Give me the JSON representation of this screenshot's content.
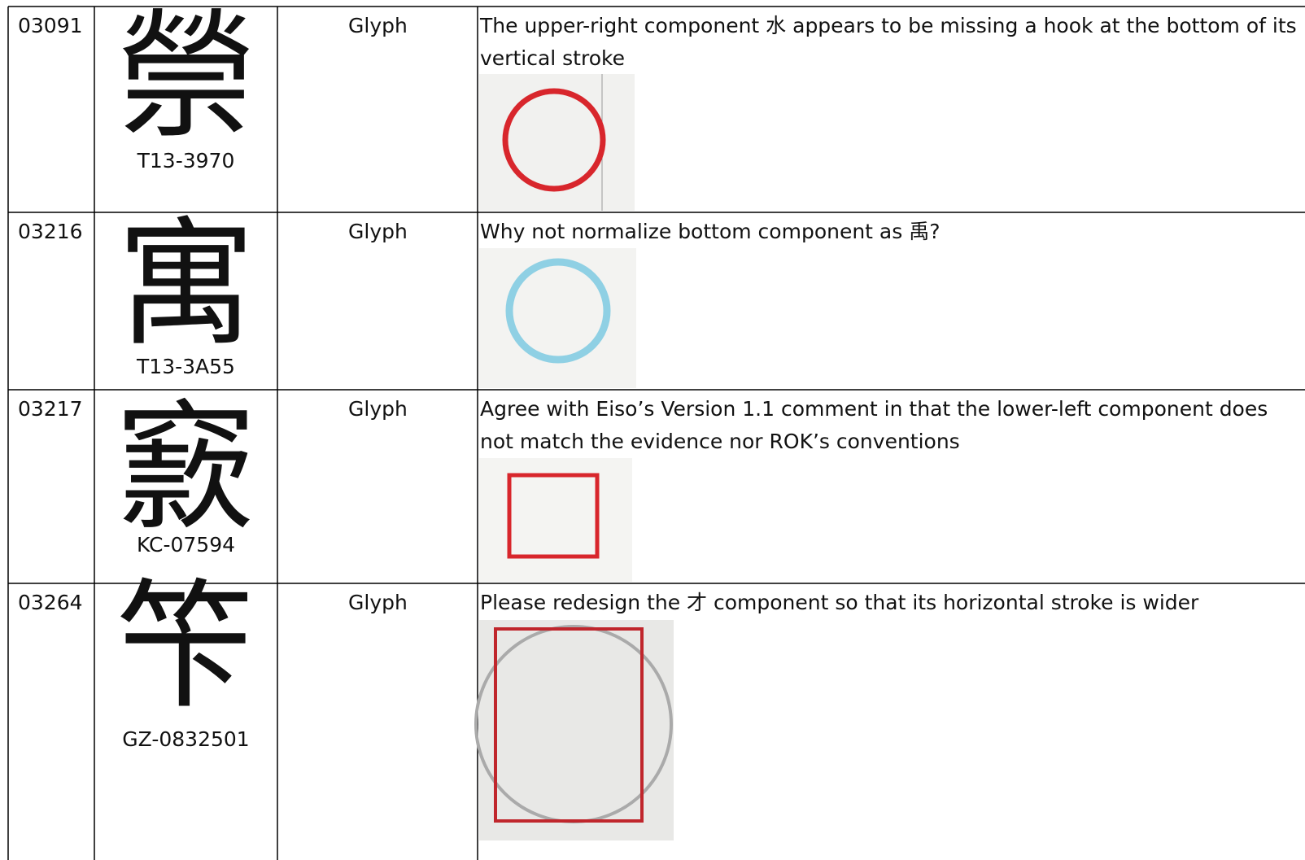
{
  "table": {
    "rows": [
      {
        "seq": "03091",
        "glyph": "禜",
        "source": "T13-3970",
        "kind": "Glyph",
        "comment": "The upper-right component 水 appears to be missing a hook at the bottom of its vertical stroke"
      },
      {
        "seq": "03216",
        "glyph": "寓",
        "source": "T13-3A55",
        "kind": "Glyph",
        "comment": "Why not normalize bottom component as 禹?"
      },
      {
        "seq": "03217",
        "glyph": "窾",
        "source": "KC-07594",
        "kind": "Glyph",
        "comment": "Agree with Eiso’s Version 1.1 comment in that the lower-left component does not match the evidence nor ROK’s conventions"
      },
      {
        "seq": "03264",
        "glyph": "笇",
        "source": "GZ-0832501",
        "kind": "Glyph",
        "comment": "Please redesign the 才 component so that its horizontal stroke is wider"
      }
    ]
  }
}
